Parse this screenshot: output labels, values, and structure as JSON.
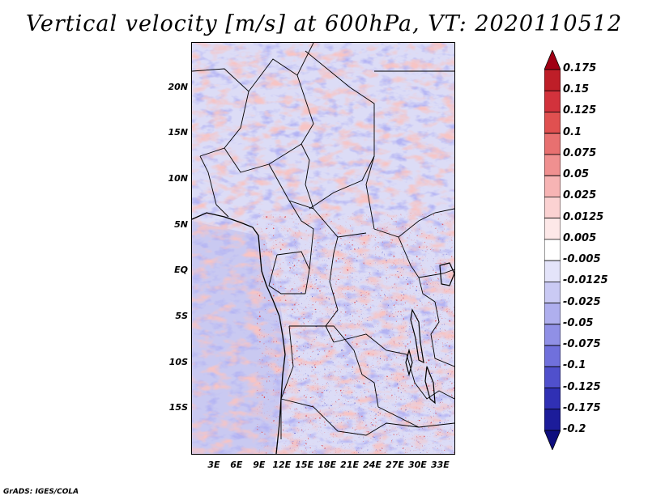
{
  "title": "Vertical velocity [m/s] at 600hPa, VT: 2020110512",
  "credit": "GrADS: IGES/COLA",
  "map": {
    "variable": "Vertical velocity",
    "units": "m/s",
    "level": "600hPa",
    "valid_time": "2020110512",
    "lat_range": [
      -20,
      25
    ],
    "lon_range": [
      0,
      35
    ],
    "lat_labels": [
      {
        "lat": 20,
        "text": "20N"
      },
      {
        "lat": 15,
        "text": "15N"
      },
      {
        "lat": 10,
        "text": "10N"
      },
      {
        "lat": 5,
        "text": "5N"
      },
      {
        "lat": 0,
        "text": "EQ"
      },
      {
        "lat": -5,
        "text": "5S"
      },
      {
        "lat": -10,
        "text": "10S"
      },
      {
        "lat": -15,
        "text": "15S"
      }
    ],
    "lon_labels": [
      {
        "lon": 3,
        "text": "3E"
      },
      {
        "lon": 6,
        "text": "6E"
      },
      {
        "lon": 9,
        "text": "9E"
      },
      {
        "lon": 12,
        "text": "12E"
      },
      {
        "lon": 15,
        "text": "15E"
      },
      {
        "lon": 18,
        "text": "18E"
      },
      {
        "lon": 21,
        "text": "21E"
      },
      {
        "lon": 24,
        "text": "24E"
      },
      {
        "lon": 27,
        "text": "27E"
      },
      {
        "lon": 30,
        "text": "30E"
      },
      {
        "lon": 33,
        "text": "33E"
      }
    ]
  },
  "colorbar": {
    "labels": [
      "0.175",
      "0.15",
      "0.125",
      "0.1",
      "0.075",
      "0.05",
      "0.025",
      "0.0125",
      "0.005",
      "-0.005",
      "-0.0125",
      "-0.025",
      "-0.05",
      "-0.075",
      "-0.1",
      "-0.125",
      "-0.175",
      "-0.2"
    ],
    "colors": [
      "#a00014",
      "#be1e28",
      "#d2323c",
      "#e05050",
      "#e87070",
      "#f09090",
      "#f7b4b4",
      "#fbd2d2",
      "#fde8e8",
      "#ffffff",
      "#e4e4fa",
      "#cacaf4",
      "#afafee",
      "#9090e6",
      "#7070dc",
      "#5050cc",
      "#3030b4",
      "#1c1c9a",
      "#0e0e7e"
    ]
  }
}
